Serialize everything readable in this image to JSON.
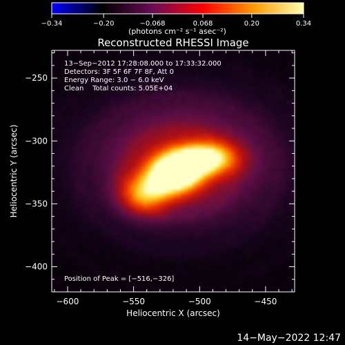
{
  "chart_data": {
    "type": "heatmap",
    "title": "Reconstructed RHESSI Image",
    "xlabel": "Heliocentric X (arcsec)",
    "ylabel": "Heliocentric Y (arcsec)",
    "xlim": [
      -612,
      -428
    ],
    "ylim": [
      -420,
      -228
    ],
    "x_ticks": [
      -600,
      -550,
      -500,
      -450
    ],
    "x_tick_labels": [
      "−600",
      "−550",
      "−500",
      "−450"
    ],
    "y_ticks": [
      -250,
      -300,
      -350,
      -400
    ],
    "y_tick_labels": [
      "−250",
      "−300",
      "−350",
      "−400"
    ],
    "colorbar": {
      "range": [
        -0.34,
        0.34
      ],
      "ticks": [
        -0.34,
        -0.2,
        -0.068,
        0.068,
        0.2,
        0.34
      ],
      "tick_labels": [
        "−0.34",
        "−0.20",
        "−0.068",
        "0.068",
        "0.20",
        "0.34"
      ],
      "units": "(photons cm⁻² s⁻¹ asec⁻²)",
      "colormap": [
        "#0000ff",
        "#000000",
        "#6a0c55",
        "#ff0000",
        "#ff9900",
        "#ffffb0"
      ]
    },
    "annotations": [
      "13−Sep−2012 17:28:08.000 to 17:33:32.000",
      "Detectors: 3F 5F 6F 7F 8F, Att 0",
      "Energy Range: 3.0 − 6.0 keV",
      "Clean    Total counts: 5.05E+04"
    ],
    "peak_label": "Position of Peak = [−516,−326]",
    "peak": [
      -516,
      -326
    ],
    "sources": [
      {
        "x": -519,
        "y": -326,
        "sx": 14,
        "sy": 11,
        "amp": 1.0
      },
      {
        "x": -496,
        "y": -314,
        "sx": 16,
        "sy": 9,
        "amp": 0.8
      },
      {
        "x": -541,
        "y": -342,
        "sx": 13,
        "sy": 11,
        "amp": 0.58
      },
      {
        "x": -512,
        "y": -316,
        "sx": 48,
        "sy": 34,
        "amp": 0.38
      }
    ],
    "background_level": 0.03
  },
  "timestamp": "14−May−2022 12:47"
}
